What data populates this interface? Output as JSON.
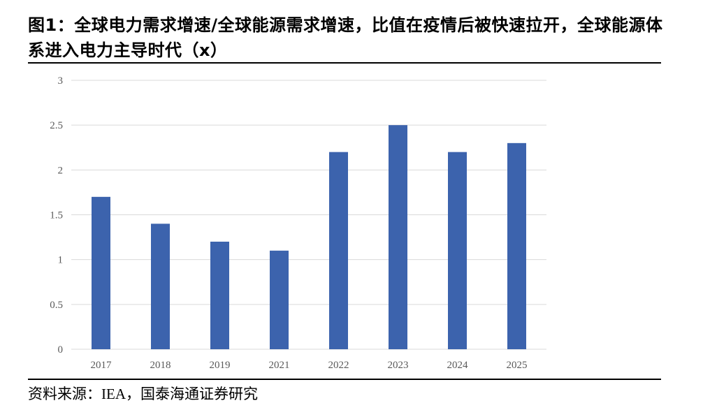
{
  "title": "图1：全球电力需求增速/全球能源需求增速，比值在疫情后被快速拉开，全球能源体系进入电力主导时代（x）",
  "source": "资料来源：IEA，国泰海通证券研究",
  "chart_data": {
    "type": "bar",
    "categories": [
      "2017",
      "2018",
      "2019",
      "2021",
      "2022",
      "2023",
      "2024",
      "2025"
    ],
    "values": [
      1.7,
      1.4,
      1.2,
      1.1,
      2.2,
      2.5,
      2.2,
      2.3
    ],
    "ylim": [
      0,
      3
    ],
    "yticks": [
      "0",
      "0.5",
      "1",
      "1.5",
      "2",
      "2.5",
      "3"
    ],
    "grid": true,
    "bar_color": "#3c63ad",
    "grid_color": "#d9d9d9"
  }
}
